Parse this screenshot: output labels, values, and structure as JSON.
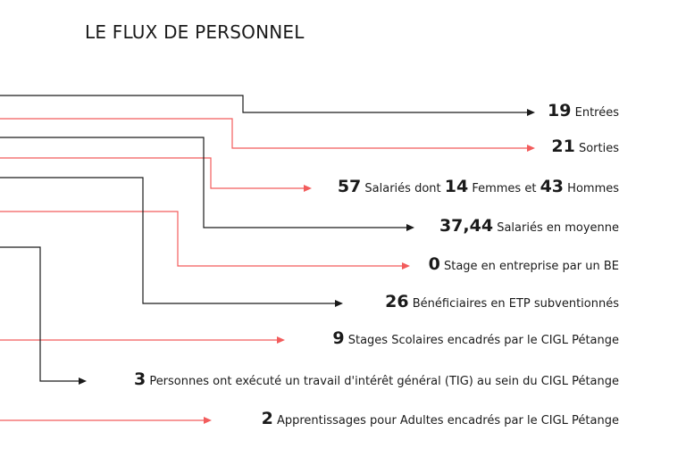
{
  "title": "LE FLUX DE PERSONNEL",
  "colors": {
    "black": "#1a1a1a",
    "red": "#f25c5c"
  },
  "items": [
    {
      "color": "black",
      "parts": [
        {
          "num": "19"
        },
        {
          "text": "Entrées"
        }
      ]
    },
    {
      "color": "red",
      "parts": [
        {
          "num": "21"
        },
        {
          "text": "Sorties"
        }
      ]
    },
    {
      "color": "red",
      "parts": [
        {
          "num": "57"
        },
        {
          "text": "Salariés dont"
        },
        {
          "num": "14"
        },
        {
          "text": "Femmes et"
        },
        {
          "num": "43"
        },
        {
          "text": "Hommes"
        }
      ]
    },
    {
      "color": "black",
      "parts": [
        {
          "num": "37,44"
        },
        {
          "text": "Salariés en moyenne"
        }
      ]
    },
    {
      "color": "red",
      "parts": [
        {
          "num": "0"
        },
        {
          "text": "Stage en entreprise par un BE"
        }
      ]
    },
    {
      "color": "black",
      "parts": [
        {
          "num": "26"
        },
        {
          "text": "Bénéficiaires en ETP subventionnés"
        }
      ]
    },
    {
      "color": "red",
      "parts": [
        {
          "num": "9"
        },
        {
          "text": "Stages Scolaires encadrés par le CIGL Pétange"
        }
      ]
    },
    {
      "color": "black",
      "parts": [
        {
          "num": "3"
        },
        {
          "text": "Personnes ont exécuté un travail d'intérêt général (TIG) au sein du CIGL Pétange"
        }
      ]
    },
    {
      "color": "red",
      "parts": [
        {
          "num": "2"
        },
        {
          "text": "Apprentissages pour Adultes encadrés par le CIGL Pétange"
        }
      ]
    }
  ]
}
